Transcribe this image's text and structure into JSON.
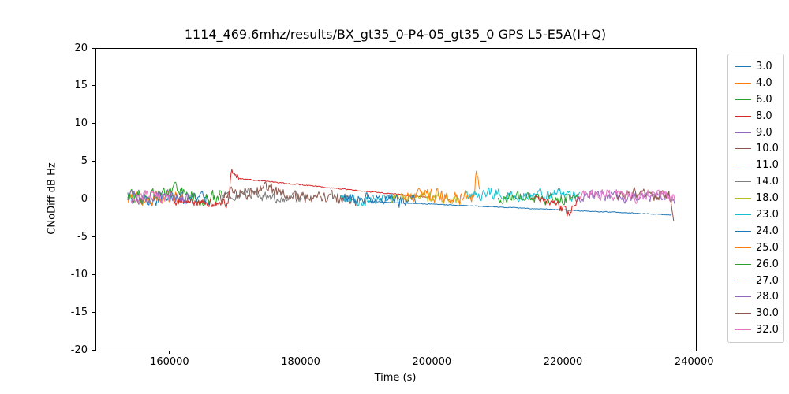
{
  "chart_data": {
    "type": "line",
    "title": "1114_469.6mhz/results/BX_gt35_0-P4-05_gt35_0 GPS L5-E5A(I+Q)",
    "xlabel": "Time (s)",
    "ylabel": "CNoDiff dB Hz",
    "xlim": [
      148700,
      240150
    ],
    "ylim": [
      -20,
      20
    ],
    "xticks": [
      160000,
      180000,
      200000,
      220000,
      240000
    ],
    "yticks": [
      20,
      15,
      10,
      5,
      0,
      -5,
      -10,
      -15,
      -20
    ],
    "grid": false,
    "legend_position": "outside-right",
    "axis_color": "#000000",
    "legend_border_color": "#cccccc",
    "series": [
      {
        "name": "3.0",
        "color": "#1f77b4",
        "segments": [
          {
            "x": [
              153500,
              156000,
              160000,
              163000,
              166000
            ],
            "y": [
              0.3,
              -0.2,
              0.4,
              0.0,
              0.2
            ],
            "noise": 0.8
          },
          {
            "x": [
              190000,
              236500
            ],
            "y": [
              -0.2,
              -2.0
            ],
            "noise": 0.06
          }
        ]
      },
      {
        "name": "4.0",
        "color": "#ff7f0e",
        "segments": [
          {
            "x": [
              153500,
              157000,
              162000
            ],
            "y": [
              0.4,
              0.1,
              0.5
            ],
            "noise": 0.9
          }
        ]
      },
      {
        "name": "6.0",
        "color": "#2ca02c",
        "segments": [
          {
            "x": [
              153500,
              158000,
              161000,
              164500,
              168000
            ],
            "y": [
              0.2,
              0.6,
              1.2,
              0.1,
              0.4
            ],
            "noise": 0.9
          }
        ]
      },
      {
        "name": "8.0",
        "color": "#d62728",
        "segments": [
          {
            "x": [
              160500,
              164000,
              168800,
              169300,
              170500
            ],
            "y": [
              -0.1,
              -0.4,
              -0.5,
              3.6,
              2.8
            ],
            "noise": 0.55
          },
          {
            "x": [
              170500,
              199500
            ],
            "y": [
              2.8,
              0.3
            ],
            "noise": 0.08
          }
        ]
      },
      {
        "name": "9.0",
        "color": "#9467bd",
        "segments": [
          {
            "x": [
              153500,
              156500,
              159500,
              163000
            ],
            "y": [
              0.6,
              0.1,
              0.8,
              0.2
            ],
            "noise": 0.8
          }
        ]
      },
      {
        "name": "10.0",
        "color": "#8c564b",
        "segments": [
          {
            "x": [
              167500,
              171000,
              174500,
              178000,
              181500,
              185000,
              188500
            ],
            "y": [
              0.4,
              0.9,
              1.3,
              0.6,
              0.3,
              0.5,
              -0.2
            ],
            "noise": 0.85
          }
        ]
      },
      {
        "name": "11.0",
        "color": "#e377c2",
        "segments": [
          {
            "x": [
              154000,
              157000,
              160000
            ],
            "y": [
              0.3,
              0.7,
              0.1
            ],
            "noise": 0.7
          }
        ]
      },
      {
        "name": "14.0",
        "color": "#7f7f7f",
        "segments": [
          {
            "x": [
              168000,
              172000,
              176000,
              180000
            ],
            "y": [
              0.5,
              0.8,
              0.4,
              0.2
            ],
            "noise": 0.7
          }
        ]
      },
      {
        "name": "18.0",
        "color": "#bcbd22",
        "segments": [
          {
            "x": [
              193500,
              197500,
              201500,
              204500
            ],
            "y": [
              0.2,
              0.5,
              0.1,
              0.3
            ],
            "noise": 0.7
          }
        ]
      },
      {
        "name": "23.0",
        "color": "#17becf",
        "segments": [
          {
            "x": [
              186000,
              190000,
              194000
            ],
            "y": [
              0.1,
              -0.2,
              0.2
            ],
            "noise": 0.7
          },
          {
            "x": [
              205000,
              209000,
              213000,
              217000,
              222500
            ],
            "y": [
              0.6,
              0.9,
              0.5,
              0.8,
              0.4
            ],
            "noise": 0.75
          }
        ]
      },
      {
        "name": "24.0",
        "color": "#1f77b4",
        "segments": [
          {
            "x": [
              186500,
              190500,
              194500,
              197500
            ],
            "y": [
              0.0,
              0.3,
              -0.3,
              0.1
            ],
            "noise": 0.8
          }
        ]
      },
      {
        "name": "25.0",
        "color": "#ff7f0e",
        "segments": [
          {
            "x": [
              195500,
              199500,
              203500,
              206300,
              206700,
              207200
            ],
            "y": [
              0.4,
              0.7,
              0.2,
              0.5,
              4.3,
              0.8
            ],
            "noise": 0.85
          }
        ]
      },
      {
        "name": "26.0",
        "color": "#2ca02c",
        "segments": [
          {
            "x": [
              210000,
              214000,
              218000,
              222000
            ],
            "y": [
              0.2,
              0.5,
              0.0,
              0.3
            ],
            "noise": 0.75
          }
        ]
      },
      {
        "name": "27.0",
        "color": "#d62728",
        "segments": [
          {
            "x": [
              215000,
              218000,
              220800,
              221300,
              222500
            ],
            "y": [
              0.1,
              -0.2,
              -1.8,
              -0.9,
              0.0
            ],
            "noise": 0.6
          }
        ]
      },
      {
        "name": "28.0",
        "color": "#9467bd",
        "segments": [
          {
            "x": [
              222000,
              226000,
              230000,
              234000,
              237000
            ],
            "y": [
              0.4,
              0.7,
              0.3,
              0.6,
              0.2
            ],
            "noise": 0.7
          }
        ]
      },
      {
        "name": "30.0",
        "color": "#8c564b",
        "segments": [
          {
            "x": [
              228000,
              231000,
              234000,
              236000,
              236800
            ],
            "y": [
              0.5,
              0.8,
              0.4,
              0.9,
              -2.4
            ],
            "noise": 0.7
          }
        ]
      },
      {
        "name": "32.0",
        "color": "#e377c2",
        "segments": [
          {
            "x": [
              222500,
              226500,
              230500,
              234500,
              237000
            ],
            "y": [
              0.6,
              0.9,
              0.4,
              0.8,
              0.5
            ],
            "noise": 0.8
          }
        ]
      }
    ]
  }
}
